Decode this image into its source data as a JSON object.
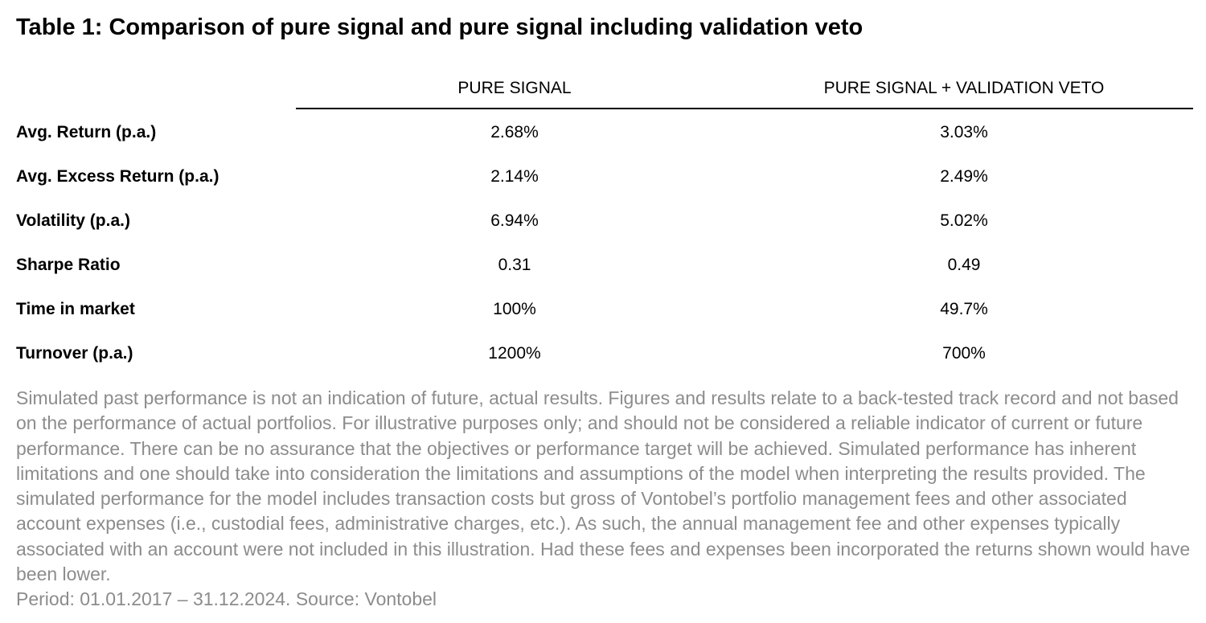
{
  "title": "Table 1: Comparison of pure signal and pure signal including validation veto",
  "table": {
    "columns": [
      "PURE SIGNAL",
      "PURE SIGNAL + VALIDATION VETO"
    ],
    "rows": [
      {
        "label": "Avg. Return (p.a.)",
        "values": [
          "2.68%",
          "3.03%"
        ]
      },
      {
        "label": "Avg. Excess Return (p.a.)",
        "values": [
          "2.14%",
          "2.49%"
        ]
      },
      {
        "label": "Volatility (p.a.)",
        "values": [
          "6.94%",
          "5.02%"
        ]
      },
      {
        "label": "Sharpe Ratio",
        "values": [
          "0.31",
          "0.49"
        ]
      },
      {
        "label": "Time in market",
        "values": [
          "100%",
          "49.7%"
        ]
      },
      {
        "label": "Turnover (p.a.)",
        "values": [
          "1200%",
          "700%"
        ]
      }
    ]
  },
  "footnote": {
    "disclaimer": "Simulated past performance is not an indication of future, actual results. Figures and results relate to a back-tested track record and not based on the performance of actual portfolios. For illustrative purposes only; and should not be considered a reliable indicator of current or future performance. There can be no assurance that the objectives or performance target will be achieved. Simulated performance has inherent limitations and one should take into consideration the limitations and assumptions of the model when interpreting the results provided. The simulated performance for the model includes transaction costs but gross of Vontobel’s portfolio management fees and other associated account expenses (i.e., custodial fees, administrative charges, etc.). As such, the annual management fee and other expenses typically associated with an account were not included in this illustration. Had these fees and expenses been incorporated the returns shown would have been lower.",
    "period_source": "Period: 01.01.2017 – 31.12.2024. Source: Vontobel"
  },
  "colors": {
    "text": "#000000",
    "footnote_text": "#8c8c8c",
    "rule": "#000000"
  }
}
